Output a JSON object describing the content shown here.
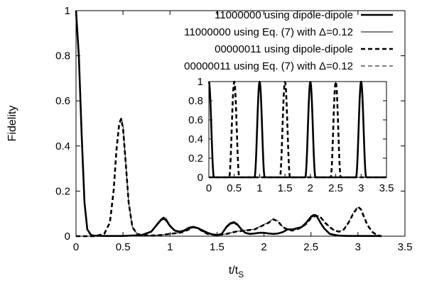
{
  "chart_data": [
    {
      "type": "line",
      "xlabel_main": "t/t",
      "xlabel_sub": "S",
      "ylabel": "Fidelity",
      "xlim": [
        0,
        3.5
      ],
      "ylim": [
        0,
        1
      ],
      "xticks": [
        "0",
        "0.5",
        "1",
        "1.5",
        "2",
        "2.5",
        "3",
        "3.5"
      ],
      "yticks": [
        "0",
        "0.2",
        "0.4",
        "0.6",
        "0.8",
        "1"
      ],
      "legend_position": "top-right",
      "series": [
        {
          "name": "11000000 using dipole-dipole",
          "style": "thick-solid",
          "x": [
            0,
            0.03,
            0.06,
            0.09,
            0.12,
            0.16,
            0.2,
            0.3,
            0.5,
            0.7,
            0.8,
            0.86,
            0.9,
            0.93,
            0.96,
            1.0,
            1.05,
            1.1,
            1.15,
            1.2,
            1.25,
            1.3,
            1.35,
            1.4,
            1.45,
            1.5,
            1.55,
            1.6,
            1.64,
            1.68,
            1.72,
            1.76,
            1.8,
            1.85,
            1.9,
            1.95,
            2.0,
            2.05,
            2.1,
            2.15,
            2.2,
            2.25,
            2.3,
            2.35,
            2.4,
            2.45,
            2.5,
            2.53,
            2.56,
            2.6,
            2.64,
            2.7,
            2.8,
            2.9,
            3.0,
            3.1,
            3.2,
            3.25
          ],
          "values": [
            1.0,
            0.8,
            0.45,
            0.15,
            0.03,
            0.005,
            0.002,
            0.001,
            0.001,
            0.005,
            0.02,
            0.05,
            0.07,
            0.078,
            0.07,
            0.045,
            0.025,
            0.02,
            0.025,
            0.035,
            0.04,
            0.035,
            0.025,
            0.015,
            0.008,
            0.005,
            0.01,
            0.04,
            0.055,
            0.06,
            0.05,
            0.03,
            0.015,
            0.01,
            0.012,
            0.015,
            0.015,
            0.012,
            0.01,
            0.012,
            0.018,
            0.03,
            0.03,
            0.035,
            0.04,
            0.06,
            0.085,
            0.092,
            0.09,
            0.06,
            0.035,
            0.01,
            0.002,
            0.001,
            0.001,
            0.001,
            0.001,
            0.0
          ]
        },
        {
          "name": "11000000 using Eq. (7) with Δ=0.12",
          "style": "thin-solid",
          "x": [
            0,
            0.03,
            0.06,
            0.09,
            0.12,
            0.16,
            0.2,
            0.3,
            0.5,
            0.7,
            0.8,
            0.86,
            0.9,
            0.93,
            0.96,
            1.0,
            1.05,
            1.1,
            1.15,
            1.2,
            1.25,
            1.3,
            1.35,
            1.4,
            1.45,
            1.5,
            1.55,
            1.6,
            1.64,
            1.68,
            1.72,
            1.76,
            1.8,
            1.85,
            1.9,
            1.95,
            2.0,
            2.05,
            2.1,
            2.15,
            2.2,
            2.25,
            2.3,
            2.35,
            2.4,
            2.45,
            2.5,
            2.53,
            2.56,
            2.6,
            2.64,
            2.7,
            2.8,
            2.9,
            3.0,
            3.1,
            3.2,
            3.25
          ],
          "values": [
            1.0,
            0.8,
            0.45,
            0.15,
            0.03,
            0.005,
            0.002,
            0.001,
            0.001,
            0.006,
            0.022,
            0.055,
            0.075,
            0.085,
            0.078,
            0.05,
            0.028,
            0.02,
            0.028,
            0.04,
            0.044,
            0.038,
            0.026,
            0.016,
            0.009,
            0.006,
            0.012,
            0.045,
            0.06,
            0.065,
            0.055,
            0.032,
            0.016,
            0.011,
            0.013,
            0.016,
            0.016,
            0.013,
            0.011,
            0.013,
            0.02,
            0.032,
            0.032,
            0.037,
            0.042,
            0.063,
            0.09,
            0.097,
            0.094,
            0.063,
            0.037,
            0.011,
            0.002,
            0.001,
            0.001,
            0.001,
            0.001,
            0.0
          ]
        },
        {
          "name": "00000011 using dipole-dipole",
          "style": "thick-dashed",
          "x": [
            0,
            0.2,
            0.3,
            0.36,
            0.4,
            0.43,
            0.46,
            0.48,
            0.5,
            0.53,
            0.56,
            0.6,
            0.65,
            0.7,
            0.8,
            0.9,
            1.0,
            1.1,
            1.15,
            1.2,
            1.25,
            1.3,
            1.35,
            1.4,
            1.5,
            1.6,
            1.7,
            1.8,
            1.9,
            1.95,
            2.0,
            2.05,
            2.1,
            2.15,
            2.2,
            2.25,
            2.3,
            2.35,
            2.4,
            2.45,
            2.5,
            2.55,
            2.6,
            2.65,
            2.7,
            2.75,
            2.8,
            2.85,
            2.9,
            2.95,
            3.0,
            3.03,
            3.06,
            3.1,
            3.15,
            3.2,
            3.25
          ],
          "values": [
            0.0,
            0.0,
            0.01,
            0.06,
            0.2,
            0.38,
            0.5,
            0.52,
            0.48,
            0.32,
            0.15,
            0.04,
            0.01,
            0.005,
            0.003,
            0.005,
            0.01,
            0.015,
            0.02,
            0.03,
            0.04,
            0.035,
            0.02,
            0.01,
            0.005,
            0.01,
            0.02,
            0.025,
            0.03,
            0.04,
            0.05,
            0.06,
            0.075,
            0.065,
            0.04,
            0.03,
            0.025,
            0.03,
            0.04,
            0.055,
            0.08,
            0.09,
            0.085,
            0.06,
            0.04,
            0.025,
            0.02,
            0.03,
            0.06,
            0.1,
            0.13,
            0.12,
            0.09,
            0.05,
            0.02,
            0.005,
            0.0
          ]
        },
        {
          "name": "00000011 using Eq. (7) with Δ=0.12",
          "style": "thin-dashed",
          "x": [
            0,
            0.2,
            0.3,
            0.36,
            0.4,
            0.43,
            0.46,
            0.48,
            0.5,
            0.53,
            0.56,
            0.6,
            0.65,
            0.7,
            0.8,
            0.9,
            1.0,
            1.1,
            1.15,
            1.2,
            1.25,
            1.3,
            1.35,
            1.4,
            1.5,
            1.6,
            1.7,
            1.8,
            1.9,
            1.95,
            2.0,
            2.05,
            2.1,
            2.15,
            2.2,
            2.25,
            2.3,
            2.35,
            2.4,
            2.45,
            2.5,
            2.55,
            2.6,
            2.65,
            2.7,
            2.75,
            2.8,
            2.85,
            2.9,
            2.95,
            3.0,
            3.03,
            3.06,
            3.1,
            3.15,
            3.2,
            3.25
          ],
          "values": [
            0.0,
            0.0,
            0.01,
            0.06,
            0.2,
            0.38,
            0.5,
            0.53,
            0.49,
            0.32,
            0.15,
            0.04,
            0.01,
            0.005,
            0.003,
            0.005,
            0.01,
            0.016,
            0.021,
            0.032,
            0.042,
            0.036,
            0.02,
            0.01,
            0.005,
            0.01,
            0.021,
            0.026,
            0.031,
            0.042,
            0.052,
            0.062,
            0.078,
            0.067,
            0.041,
            0.031,
            0.026,
            0.031,
            0.041,
            0.057,
            0.083,
            0.093,
            0.088,
            0.062,
            0.041,
            0.026,
            0.021,
            0.031,
            0.062,
            0.103,
            0.132,
            0.122,
            0.092,
            0.051,
            0.02,
            0.005,
            0.0
          ]
        }
      ]
    },
    {
      "type": "line",
      "role": "inset",
      "xlim": [
        0,
        3.5
      ],
      "ylim": [
        0,
        1
      ],
      "xticks": [
        "0",
        "0.5",
        "1",
        "1.5",
        "2",
        "2.5",
        "3",
        "3.5"
      ],
      "yticks": [
        "0",
        "0.2",
        "0.4",
        "0.6",
        "0.8",
        "1"
      ],
      "series": [
        {
          "style": "thick-solid",
          "peak_centers": [
            0,
            1,
            2,
            3
          ],
          "peak_height": 1.0,
          "peak_halfwidth": 0.1
        },
        {
          "style": "thick-dashed",
          "peak_centers": [
            0.5,
            1.5,
            2.5
          ],
          "peak_height": 1.0,
          "peak_halfwidth": 0.1
        }
      ]
    }
  ]
}
